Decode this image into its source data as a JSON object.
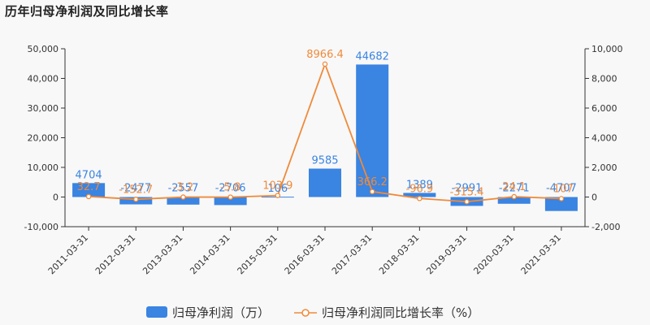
{
  "chart_data": {
    "type": "bar",
    "title": "历年归母净利润及同比增长率",
    "categories": [
      "2011-03-31",
      "2012-03-31",
      "2013-03-31",
      "2014-03-31",
      "2015-03-31",
      "2016-03-31",
      "2017-03-31",
      "2018-03-31",
      "2019-03-31",
      "2020-03-31",
      "2021-03-31"
    ],
    "series": [
      {
        "name": "归母净利润（万）",
        "type": "bar",
        "axis": "left",
        "color": "#3a84e2",
        "values": [
          4704,
          -2477,
          -2557,
          -2706,
          106,
          9585,
          44682,
          1389,
          -2991,
          -2271,
          -4707
        ],
        "labels": [
          "4704",
          "-2477",
          "-2557",
          "-2706",
          "106",
          "9585",
          "44682",
          "1389",
          "-2991",
          "-2271",
          "-4707"
        ]
      },
      {
        "name": "归母净利润同比增长率（%）",
        "type": "line",
        "axis": "right",
        "color": "#ef8a3a",
        "values": [
          32.7,
          -152.7,
          -3.2,
          -5.8,
          103.9,
          8966.4,
          366.2,
          -96.9,
          -315.4,
          24.1,
          -107.2
        ],
        "labels": [
          "32.7",
          "-152.7",
          "-3.2",
          "-5.8",
          "103.9",
          "8966.4",
          "366.2",
          "-96.9",
          "-315.4",
          "24.1",
          "-107"
        ]
      }
    ],
    "y_left": {
      "min": -10000,
      "max": 50000,
      "ticks": [
        "-10,000",
        "0",
        "10,000",
        "20,000",
        "30,000",
        "40,000",
        "50,000"
      ],
      "tick_values": [
        -10000,
        0,
        10000,
        20000,
        30000,
        40000,
        50000
      ]
    },
    "y_right": {
      "min": -2000,
      "max": 10000,
      "ticks": [
        "-2,000",
        "0",
        "2,000",
        "4,000",
        "6,000",
        "8,000",
        "10,000"
      ],
      "tick_values": [
        -2000,
        0,
        2000,
        4000,
        6000,
        8000,
        10000
      ]
    },
    "grid": false,
    "legend_position": "bottom-center"
  }
}
